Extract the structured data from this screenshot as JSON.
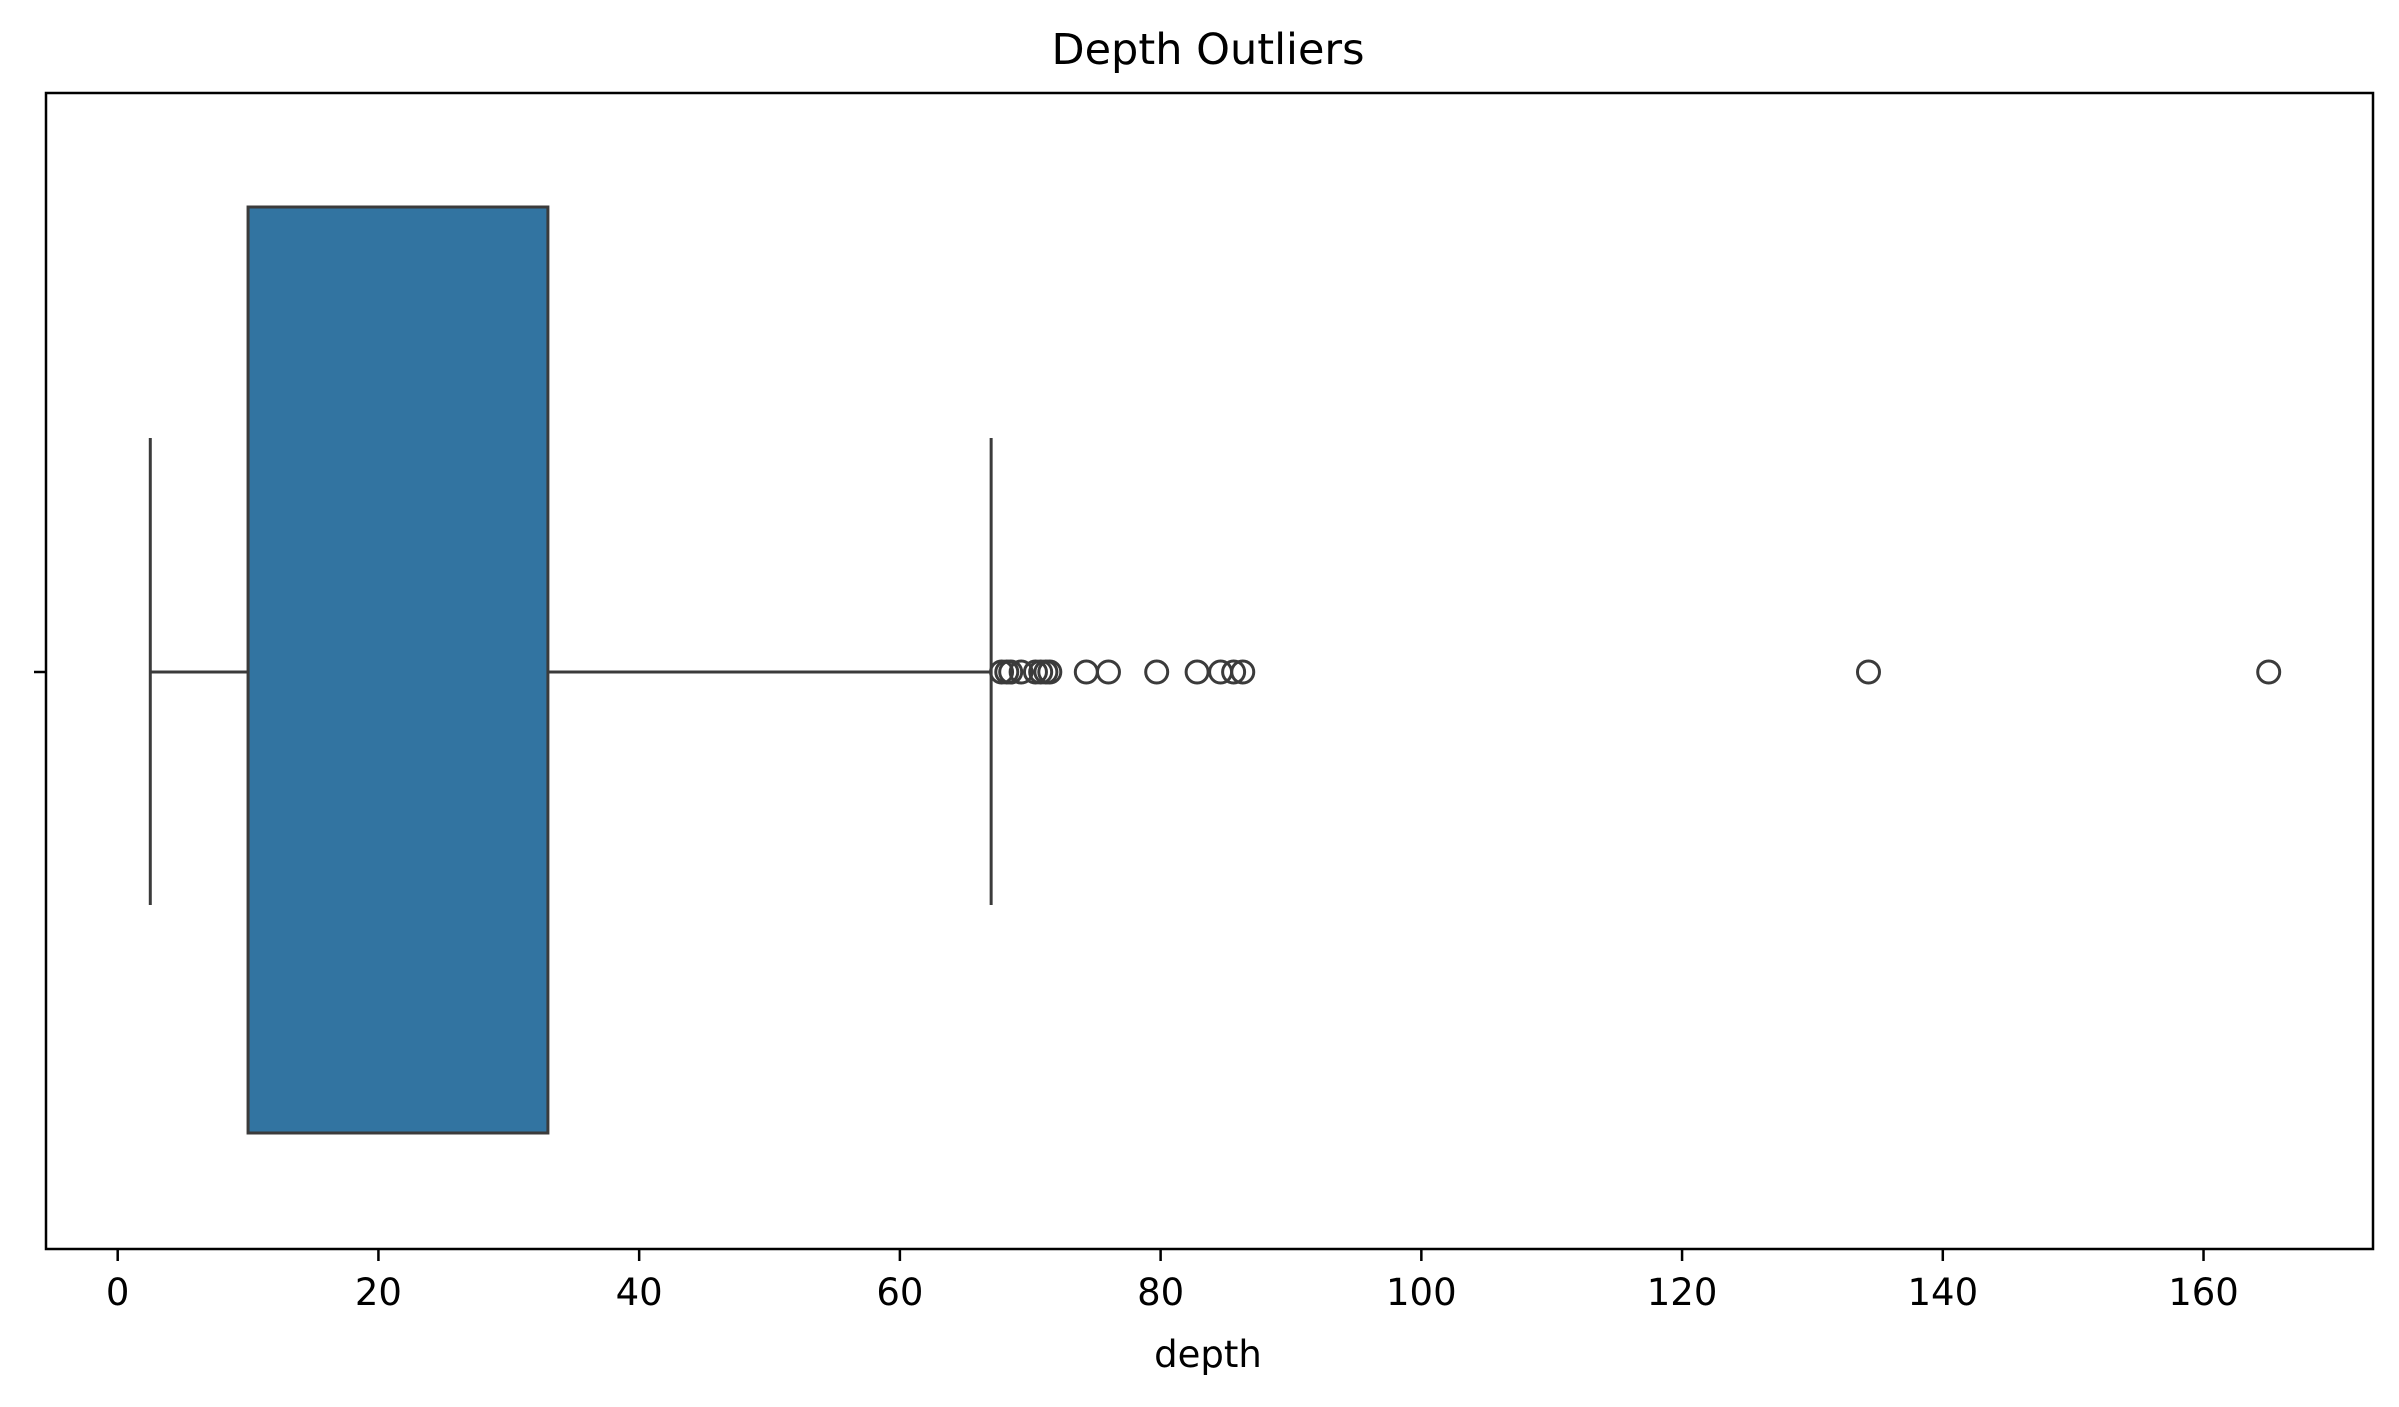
{
  "chart_data": {
    "type": "box",
    "orientation": "horizontal",
    "title": "Depth Outliers",
    "xlabel": "depth",
    "ylabel": "",
    "xlim": [
      -5.5,
      173
    ],
    "xticks": [
      0,
      20,
      40,
      60,
      80,
      100,
      120,
      140,
      160
    ],
    "box": {
      "whisker_low": 2.5,
      "q1": 10,
      "q3": 33,
      "whisker_high": 67
    },
    "outliers": [
      67.8,
      68.2,
      68.5,
      69.3,
      70.4,
      70.8,
      71.2,
      71.5,
      74.3,
      76.0,
      79.7,
      82.8,
      84.6,
      85.6,
      86.3,
      134.3,
      165.0
    ],
    "colors": {
      "box_fill": "#3274a1",
      "line": "#3b3b3b"
    },
    "grid": false
  }
}
